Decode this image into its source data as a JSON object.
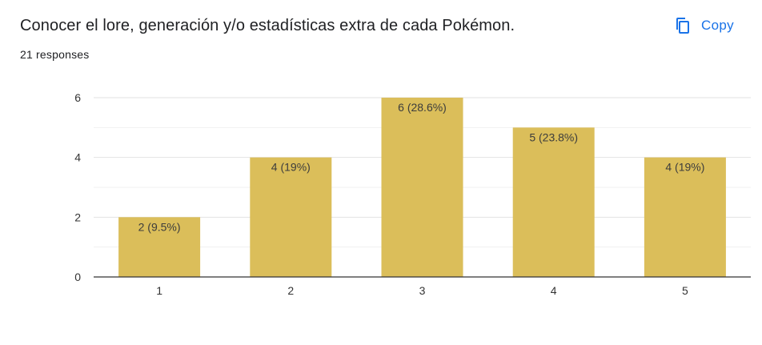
{
  "question": {
    "title": "Conocer el lore, generación y/o estadísticas extra de cada Pokémon.",
    "responses": "21 responses"
  },
  "toolbar": {
    "copy_label": "Copy",
    "copy_icon": "copy-icon"
  },
  "colors": {
    "bar": "#dbbe5a",
    "accent": "#1a73e8",
    "text": "#202124",
    "grid": "#ebebeb",
    "axis": "#333333"
  },
  "chart_data": {
    "type": "bar",
    "categories": [
      "1",
      "2",
      "3",
      "4",
      "5"
    ],
    "values": [
      2,
      4,
      6,
      5,
      4
    ],
    "data_labels": [
      "2 (9.5%)",
      "4 (19%)",
      "6 (28.6%)",
      "5 (23.8%)",
      "4 (19%)"
    ],
    "ylim": [
      0,
      6
    ],
    "yticks": [
      "0",
      "2",
      "4",
      "6"
    ],
    "title": "",
    "xlabel": "",
    "ylabel": "",
    "grid": true,
    "legend": "none"
  }
}
